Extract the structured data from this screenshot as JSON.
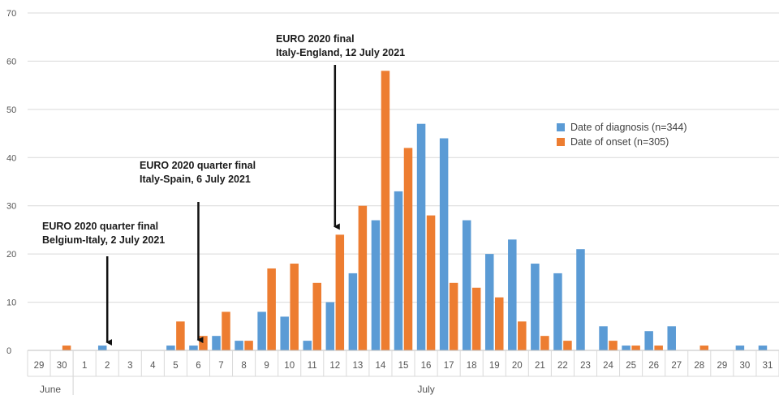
{
  "chart_data": {
    "type": "bar",
    "categories": [
      "29",
      "30",
      "1",
      "2",
      "3",
      "4",
      "5",
      "6",
      "7",
      "8",
      "9",
      "10",
      "11",
      "12",
      "13",
      "14",
      "15",
      "16",
      "17",
      "18",
      "19",
      "20",
      "21",
      "22",
      "23",
      "24",
      "25",
      "26",
      "27",
      "28",
      "29",
      "30",
      "31"
    ],
    "month_groups": [
      {
        "label": "June",
        "count": 2
      },
      {
        "label": "July",
        "count": 31
      }
    ],
    "yticks": [
      0,
      10,
      20,
      30,
      40,
      50,
      60,
      70
    ],
    "ylim": [
      0,
      70
    ],
    "series": [
      {
        "name": "Date of diagnosis (n=344)",
        "color": "#5b9bd5",
        "values": [
          0,
          0,
          0,
          1,
          0,
          0,
          1,
          1,
          3,
          2,
          8,
          7,
          2,
          10,
          16,
          27,
          33,
          47,
          44,
          27,
          20,
          23,
          18,
          16,
          21,
          5,
          1,
          4,
          5,
          0,
          0,
          1,
          1
        ]
      },
      {
        "name": "Date of onset (n=305)",
        "color": "#ed7d31",
        "values": [
          0,
          1,
          0,
          0,
          0,
          0,
          6,
          3,
          8,
          2,
          17,
          18,
          14,
          24,
          30,
          58,
          42,
          28,
          14,
          13,
          11,
          6,
          3,
          2,
          0,
          2,
          1,
          1,
          0,
          1,
          0,
          0,
          0
        ]
      }
    ],
    "annotations": [
      {
        "lines": [
          "EURO 2020 quarter final",
          "Belgium-Italy, 2 July 2021"
        ],
        "category": "2",
        "arrow_to_value": 1
      },
      {
        "lines": [
          "EURO 2020 quarter final",
          "Italy-Spain, 6 July 2021"
        ],
        "category": "6",
        "arrow_to_value": 1.5
      },
      {
        "lines": [
          "EURO 2020 final",
          "Italy-England, 12 July 2021"
        ],
        "category": "12",
        "arrow_to_value": 25
      }
    ],
    "grid": true,
    "legend_position": "right"
  }
}
